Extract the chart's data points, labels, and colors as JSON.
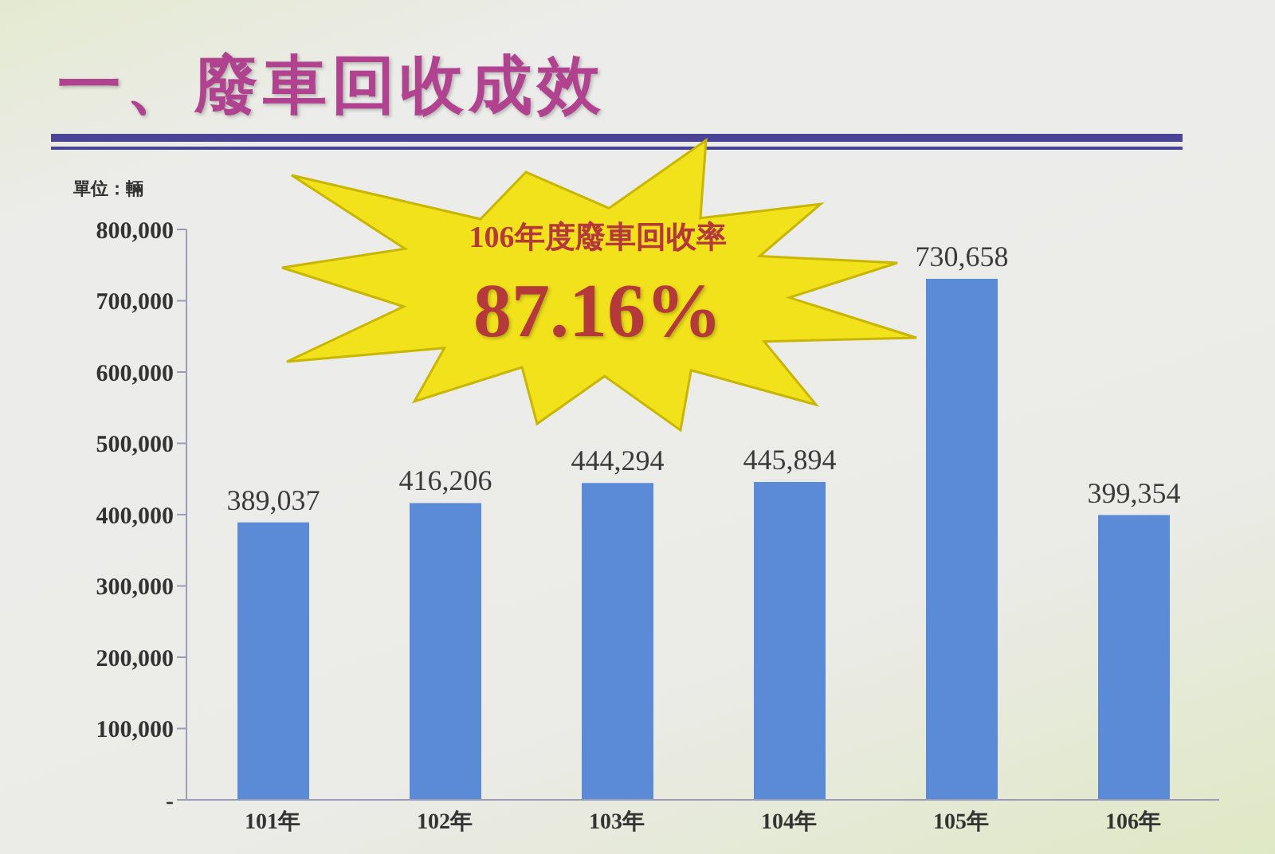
{
  "chart_data": {
    "type": "bar",
    "title": "一、廢車回收成效",
    "ylabel": "單位：輛",
    "annotations": [
      "106年度廢車回收率",
      "87.16%"
    ],
    "categories": [
      "101年",
      "102年",
      "103年",
      "104年",
      "105年",
      "106年"
    ],
    "values": [
      389037,
      416206,
      444294,
      445894,
      730658,
      399354
    ],
    "value_labels": [
      "389,037",
      "416,206",
      "444,294",
      "445,894",
      "730,658",
      "399,354"
    ],
    "color": "#5b8bd6",
    "ylim": [
      0,
      800000
    ],
    "yticks": [
      {
        "value": 0,
        "label": "-"
      },
      {
        "value": 100000,
        "label": "100,000"
      },
      {
        "value": 200000,
        "label": "200,000"
      },
      {
        "value": 300000,
        "label": "300,000"
      },
      {
        "value": 400000,
        "label": "400,000"
      },
      {
        "value": 500000,
        "label": "500,000"
      },
      {
        "value": 600000,
        "label": "600,000"
      },
      {
        "value": 700000,
        "label": "700,000"
      },
      {
        "value": 800000,
        "label": "800,000"
      }
    ]
  }
}
